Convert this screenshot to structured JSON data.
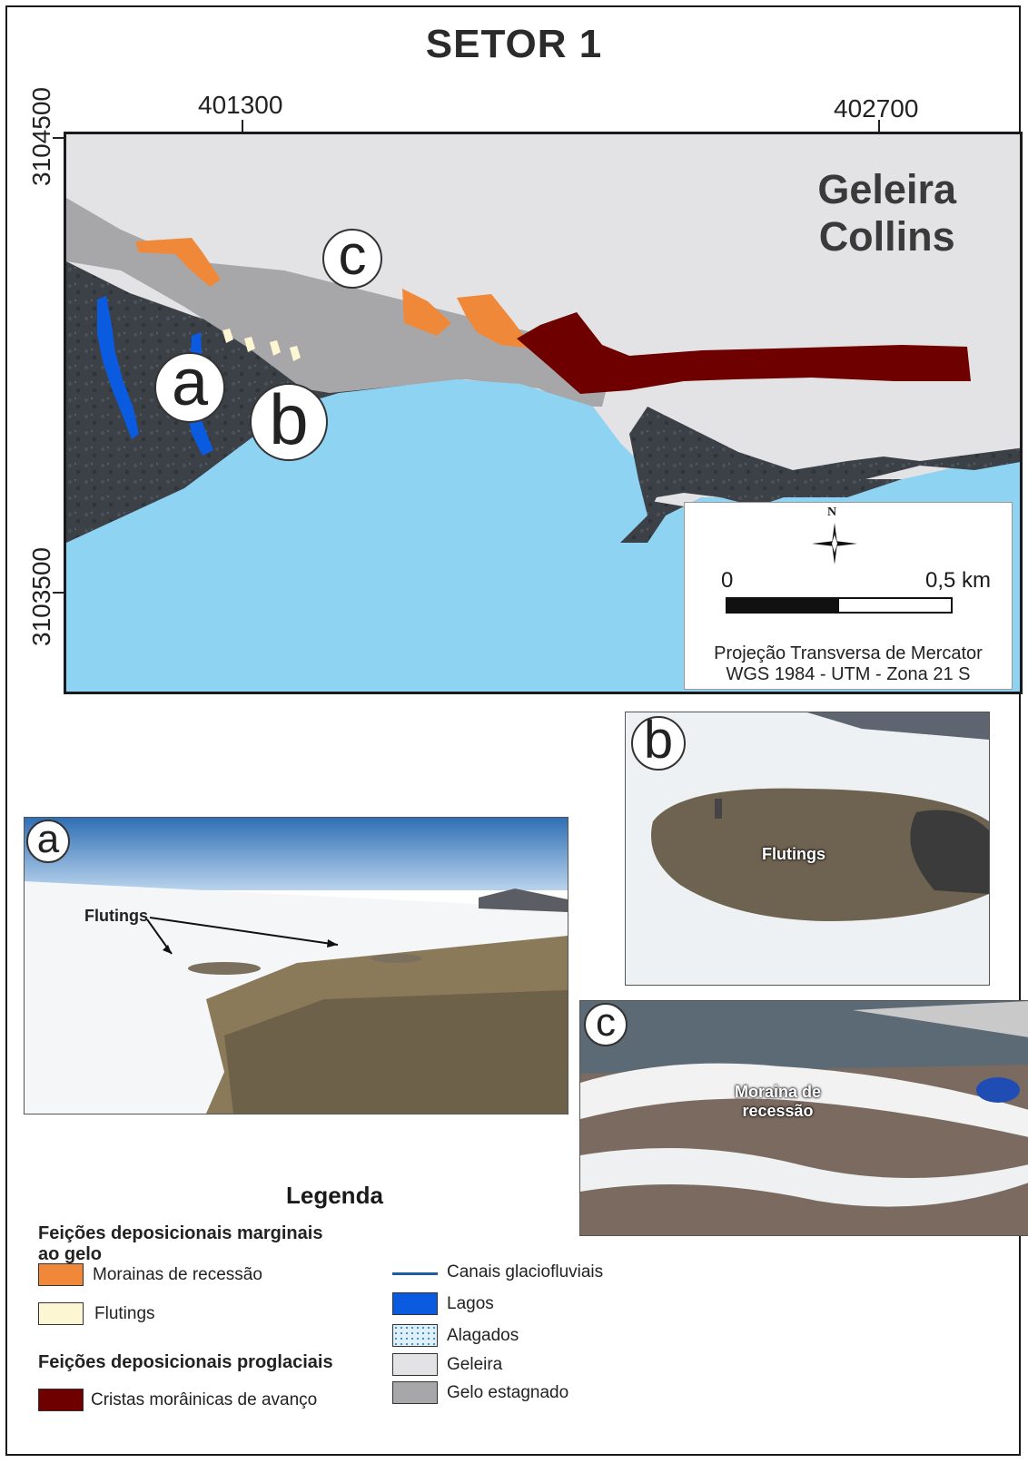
{
  "title": "SETOR 1",
  "coords": {
    "x_left": "401300",
    "x_right": "402700",
    "y_top": "3104500",
    "y_bottom": "3103500"
  },
  "map": {
    "glacier_name_line1": "Geleira",
    "glacier_name_line2": "Collins",
    "markers": [
      "a",
      "b",
      "c"
    ],
    "north_label": "N",
    "scale_start": "0",
    "scale_end": "0,5 km",
    "projection_line1": "Projeção Transversa de Mercator",
    "projection_line2": "WGS 1984 - UTM - Zona 21 S"
  },
  "photos": {
    "a": {
      "marker": "a",
      "label": "Flutings"
    },
    "b": {
      "marker": "b",
      "label": "Flutings"
    },
    "c": {
      "marker": "c",
      "label_line1": "Moraina de",
      "label_line2": "recessão"
    }
  },
  "legend": {
    "title": "Legenda",
    "group1_line1": "Feições deposicionais marginais",
    "group1_line2": "ao gelo",
    "group2": "Feições deposicionais proglaciais",
    "items_left": [
      {
        "label": "Morainas de recessão",
        "color": "#f0883a"
      },
      {
        "label": "Flutings",
        "color": "#fdf6d2"
      },
      {
        "label": "Cristas morâinicas de avanço",
        "color": "#6e0000"
      }
    ],
    "items_right": [
      {
        "label": "Canais glaciofluviais",
        "color": "#1f5aa6",
        "kind": "line"
      },
      {
        "label": "Lagos",
        "color": "#0a5be0",
        "kind": "fill"
      },
      {
        "label": "Alagados",
        "color": "#dff0fb",
        "kind": "dotted"
      },
      {
        "label": "Geleira",
        "color": "#e3e3e5",
        "kind": "fill"
      },
      {
        "label": "Gelo estagnado",
        "color": "#a7a7aa",
        "kind": "fill"
      }
    ]
  },
  "colors": {
    "sea": "#8fd3f3",
    "glacier": "#e3e3e5",
    "stagnant_ice": "#a7a7aa",
    "rock": "#3c4147",
    "moraine_recession": "#f0883a",
    "moraine_advance": "#6e0000",
    "lake": "#0a5be0",
    "fluting": "#fdf6d2"
  }
}
